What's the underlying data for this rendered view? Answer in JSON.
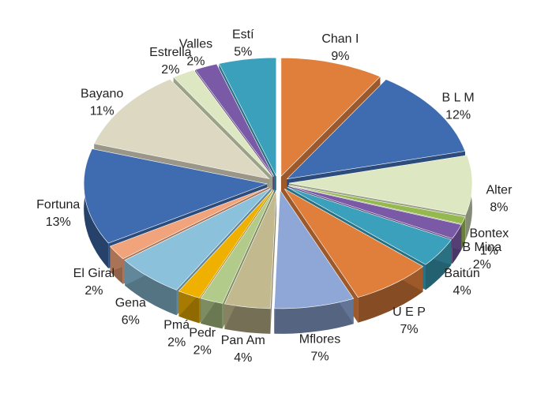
{
  "chart_data": {
    "type": "pie",
    "categories": [
      "Chan I",
      "B L M",
      "Alter",
      "Bontex",
      "B Mina",
      "Baitún",
      "U E P",
      "Mflores",
      "Pan Am",
      "Pedr",
      "Pmá",
      "Gena",
      "El Giral",
      "Fortuna",
      "Bayano",
      "Estrella",
      "Valles",
      "Estí"
    ],
    "values": [
      9,
      12,
      8,
      1,
      2,
      4,
      7,
      7,
      4,
      2,
      2,
      6,
      2,
      13,
      11,
      2,
      2,
      5
    ],
    "value_labels": [
      "9%",
      "12%",
      "8%",
      "1%",
      "2%",
      "4%",
      "7%",
      "7%",
      "4%",
      "2%",
      "2%",
      "6%",
      "2%",
      "13%",
      "11%",
      "2%",
      "2%",
      "5%"
    ],
    "colors": [
      "#e07f3c",
      "#3f6cb0",
      "#dde8c2",
      "#96b94f",
      "#7a5aa6",
      "#3aa0bb",
      "#e07f3c",
      "#8ea7d6",
      "#c2b98e",
      "#b2ca8a",
      "#efb000",
      "#8cc1dc",
      "#f1a47c",
      "#3f6cb0",
      "#ddd8c2",
      "#dde8c2",
      "#7a5aa6",
      "#3aa0bb"
    ]
  }
}
